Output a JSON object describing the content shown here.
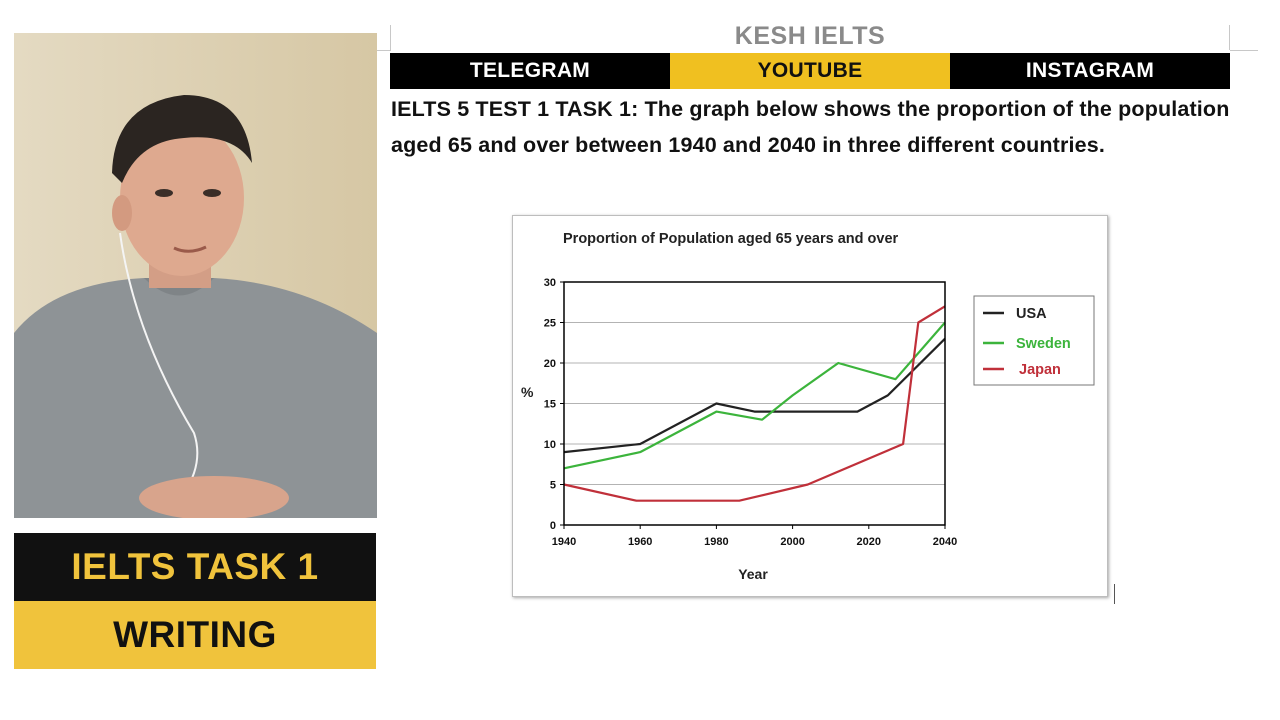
{
  "brand": "KESH IELTS",
  "social": {
    "telegram": "TELEGRAM",
    "youtube": "YOUTUBE",
    "instagram": "INSTAGRAM"
  },
  "task_prompt": "IELTS 5 TEST 1 TASK 1: The graph below shows the proportion of the population aged 65 and over between 1940 and 2040 in three different countries.",
  "banner": {
    "line1": "IELTS TASK 1",
    "line2": "WRITING"
  },
  "colors": {
    "brand_yellow": "#f0c33c",
    "bar_black": "#000000",
    "usa": "#222222",
    "sweden": "#3cb43c",
    "japan": "#c0303a"
  },
  "chart_data": {
    "type": "line",
    "title": "Proportion of Population aged 65 years and over",
    "xlabel": "Year",
    "ylabel": "%",
    "xlim": [
      1940,
      2040
    ],
    "ylim": [
      0,
      30
    ],
    "xticks": [
      "1940",
      "1960",
      "1980",
      "2000",
      "2020",
      "2040"
    ],
    "yticks": [
      "0",
      "5",
      "10",
      "15",
      "20",
      "25",
      "30"
    ],
    "grid": "horizontal",
    "legend_position": "right",
    "series": [
      {
        "name": "USA",
        "color": "#222222",
        "points": [
          [
            1940,
            9
          ],
          [
            1960,
            10
          ],
          [
            1980,
            15
          ],
          [
            1990,
            14
          ],
          [
            2000,
            14
          ],
          [
            2010,
            14
          ],
          [
            2017,
            14
          ],
          [
            2025,
            16
          ],
          [
            2040,
            23
          ]
        ]
      },
      {
        "name": "Sweden",
        "color": "#3cb43c",
        "points": [
          [
            1940,
            7
          ],
          [
            1960,
            9
          ],
          [
            1980,
            14
          ],
          [
            1992,
            13
          ],
          [
            2000,
            16
          ],
          [
            2012,
            20
          ],
          [
            2027,
            18
          ],
          [
            2040,
            25
          ]
        ]
      },
      {
        "name": "Japan",
        "color": "#c0303a",
        "points": [
          [
            1940,
            5
          ],
          [
            1959,
            3
          ],
          [
            1986,
            3
          ],
          [
            2004,
            5
          ],
          [
            2029,
            10
          ],
          [
            2033,
            25
          ],
          [
            2040,
            27
          ]
        ]
      }
    ]
  }
}
